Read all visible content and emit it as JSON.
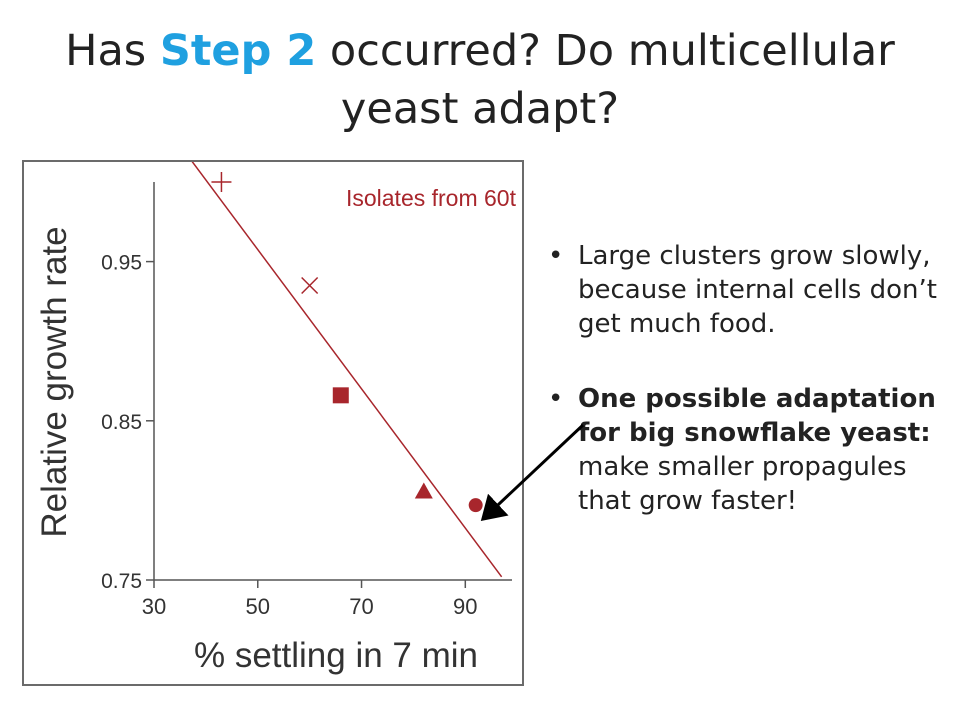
{
  "slide": {
    "title_prefix": "Has ",
    "title_accent": "Step 2",
    "title_suffix": " occurred? Do multicellular yeast adapt?",
    "bullets": [
      {
        "marker": "•",
        "text": "Large clusters grow slowly, because internal cells don’t get much food."
      },
      {
        "marker": "•",
        "bold": "One possible adaptation for big snowflake yeast:",
        "text": " make smaller propagules that grow faster!"
      }
    ]
  },
  "chart_data": {
    "type": "scatter",
    "title": "Isolates from 60t",
    "xlabel": "% settling in 7 min",
    "ylabel": "Relative growth rate",
    "xlim": [
      30,
      99
    ],
    "ylim": [
      0.75,
      1.0
    ],
    "xticks": [
      "30",
      "50",
      "70",
      "90"
    ],
    "yticks": [
      "0.75",
      "0.85",
      "0.95"
    ],
    "grid": false,
    "series": [
      {
        "color": "#a8262c",
        "points": [
          {
            "x": 43,
            "y": 1.0,
            "marker": "plus"
          },
          {
            "x": 60,
            "y": 0.935,
            "marker": "cross"
          },
          {
            "x": 66,
            "y": 0.866,
            "marker": "square"
          },
          {
            "x": 82,
            "y": 0.805,
            "marker": "triangle"
          },
          {
            "x": 92,
            "y": 0.797,
            "marker": "circle"
          }
        ]
      }
    ],
    "fit_line": {
      "x": [
        30,
        97
      ],
      "y": [
        1.045,
        0.752
      ],
      "color": "#a8262c"
    }
  },
  "annotation": {
    "type": "arrow",
    "color": "#000000",
    "points_to": "circle point"
  }
}
